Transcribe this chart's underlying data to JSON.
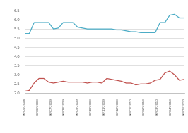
{
  "ylim": [
    2.0,
    6.5
  ],
  "yticks": [
    2.0,
    2.5,
    3.0,
    3.5,
    4.0,
    4.5,
    5.0,
    5.5,
    6.0,
    6.5
  ],
  "x_labels": [
    "06/05/2008",
    "06/06/2009",
    "06/07/2009",
    "06/08/2009",
    "06/09/2009",
    "06/10/2009",
    "06/11/2009",
    "06/12/2009",
    "06/01/2010",
    "06/02/2010",
    "06/03/2010",
    "06/04/2010",
    "06/05/2010"
  ],
  "mortgage_rate": [
    5.25,
    5.25,
    5.85,
    5.85,
    5.85,
    5.85,
    5.5,
    5.55,
    5.85,
    5.85,
    5.85,
    5.6,
    5.55,
    5.5,
    5.5,
    5.5,
    5.5,
    5.5,
    5.5,
    5.45,
    5.45,
    5.4,
    5.35,
    5.35,
    5.3,
    5.3,
    5.3,
    5.3,
    5.85,
    5.85,
    6.25,
    6.3,
    6.1,
    6.1
  ],
  "bond_yield": [
    2.1,
    2.15,
    2.55,
    2.8,
    2.8,
    2.6,
    2.55,
    2.6,
    2.65,
    2.6,
    2.6,
    2.6,
    2.6,
    2.55,
    2.6,
    2.6,
    2.55,
    2.8,
    2.75,
    2.7,
    2.65,
    2.55,
    2.55,
    2.45,
    2.5,
    2.5,
    2.55,
    2.7,
    2.75,
    3.1,
    3.2,
    3.0,
    2.7,
    2.75
  ],
  "mortgage_color": "#4bacc6",
  "bond_color": "#c0504d",
  "background_color": "#ffffff",
  "grid_color": "#c8c8c8"
}
